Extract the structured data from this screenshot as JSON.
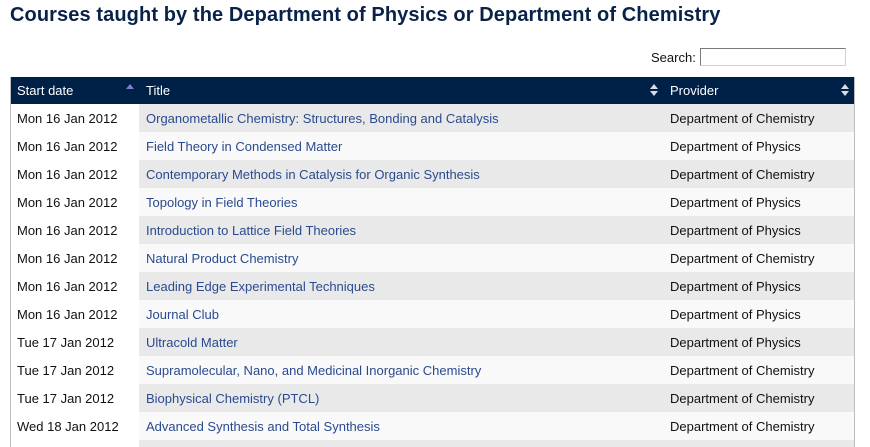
{
  "page": {
    "title": "Courses taught by the Department of Physics or Department of Chemistry"
  },
  "search": {
    "label": "Search:",
    "value": "",
    "placeholder": ""
  },
  "table": {
    "columns": [
      {
        "label": "Start date",
        "sort": "asc",
        "sort_icon": "sort-ascending-icon"
      },
      {
        "label": "Title",
        "sort": "none",
        "sort_icon": "sort-both-icon"
      },
      {
        "label": "Provider",
        "sort": "none",
        "sort_icon": "sort-both-icon"
      }
    ],
    "colors": {
      "header_bg": "#002147",
      "header_text": "#ffffff",
      "sort_active": "#7b7fd6",
      "link": "#2a4a8f",
      "row_odd": "#e9e9e9",
      "row_even": "#f9f9f9",
      "sorted_column_bg": "#ffffff"
    },
    "rows": [
      {
        "date": "Mon 16 Jan 2012",
        "title": "Organometallic Chemistry: Structures, Bonding and Catalysis",
        "provider": "Department of Chemistry"
      },
      {
        "date": "Mon 16 Jan 2012",
        "title": "Field Theory in Condensed Matter",
        "provider": "Department of Physics"
      },
      {
        "date": "Mon 16 Jan 2012",
        "title": "Contemporary Methods in Catalysis for Organic Synthesis",
        "provider": "Department of Chemistry"
      },
      {
        "date": "Mon 16 Jan 2012",
        "title": "Topology in Field Theories",
        "provider": "Department of Physics"
      },
      {
        "date": "Mon 16 Jan 2012",
        "title": "Introduction to Lattice Field Theories",
        "provider": "Department of Physics"
      },
      {
        "date": "Mon 16 Jan 2012",
        "title": "Natural Product Chemistry",
        "provider": "Department of Chemistry"
      },
      {
        "date": "Mon 16 Jan 2012",
        "title": "Leading Edge Experimental Techniques",
        "provider": "Department of Physics"
      },
      {
        "date": "Mon 16 Jan 2012",
        "title": "Journal Club",
        "provider": "Department of Physics"
      },
      {
        "date": "Tue 17 Jan 2012",
        "title": "Ultracold Matter",
        "provider": "Department of Physics"
      },
      {
        "date": "Tue 17 Jan 2012",
        "title": "Supramolecular, Nano, and Medicinal Inorganic Chemistry",
        "provider": "Department of Chemistry"
      },
      {
        "date": "Tue 17 Jan 2012",
        "title": "Biophysical Chemistry (PTCL)",
        "provider": "Department of Chemistry"
      },
      {
        "date": "Wed 18 Jan 2012",
        "title": "Advanced Synthesis and Total Synthesis",
        "provider": "Department of Chemistry"
      },
      {
        "date": "",
        "title": "",
        "provider": ""
      }
    ]
  }
}
